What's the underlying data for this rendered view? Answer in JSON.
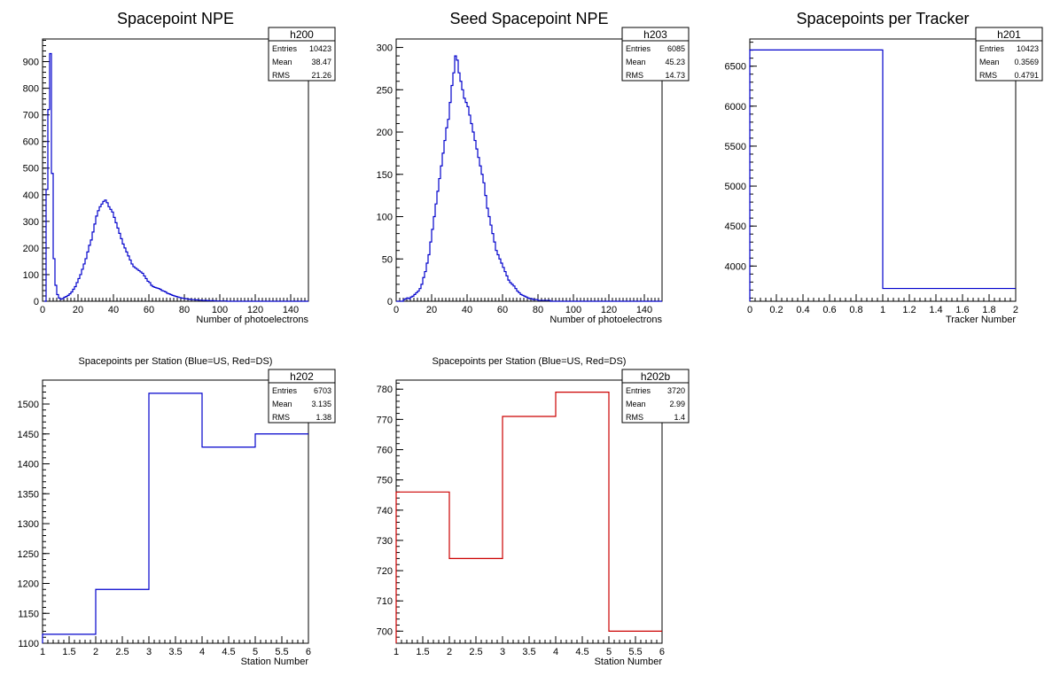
{
  "chart_data": [
    {
      "type": "histogram",
      "id": "h200",
      "title": "Spacepoint NPE",
      "title_style": "big",
      "xlabel": "Number of photoelectrons",
      "ylabel": "",
      "xlim": [
        0,
        150
      ],
      "ylim": [
        0,
        985
      ],
      "x_ticks": [
        0,
        20,
        40,
        60,
        80,
        100,
        120,
        140
      ],
      "x_minor": 2,
      "y_ticks": [
        0,
        100,
        200,
        300,
        400,
        500,
        600,
        700,
        800,
        900
      ],
      "y_minor": 20,
      "line_color": "#0000cc",
      "bin_width": 1,
      "bin_start": 1,
      "values": [
        0,
        420,
        720,
        930,
        480,
        160,
        60,
        25,
        12,
        8,
        10,
        15,
        18,
        22,
        28,
        35,
        45,
        55,
        70,
        85,
        100,
        120,
        140,
        160,
        185,
        210,
        230,
        260,
        290,
        320,
        340,
        355,
        365,
        375,
        380,
        370,
        355,
        345,
        335,
        315,
        295,
        275,
        255,
        235,
        215,
        200,
        185,
        170,
        155,
        140,
        130,
        125,
        120,
        115,
        110,
        105,
        95,
        85,
        75,
        70,
        60,
        55,
        52,
        50,
        48,
        45,
        40,
        38,
        35,
        30,
        28,
        25,
        22,
        20,
        18,
        16,
        14,
        12,
        11,
        10,
        9,
        8,
        7,
        6,
        6,
        5,
        5,
        4,
        4,
        3,
        3,
        3,
        2,
        2,
        2,
        2,
        1,
        1,
        1,
        1,
        1,
        1,
        1,
        0,
        0,
        0,
        0,
        0,
        0,
        0,
        0,
        0,
        0,
        0,
        0,
        0,
        0,
        0,
        0,
        0,
        0,
        0,
        0,
        0,
        0,
        0,
        0,
        0,
        0,
        0,
        0,
        0,
        0,
        0,
        0,
        0,
        0,
        0,
        0,
        0,
        0,
        0,
        0,
        0,
        0,
        0,
        0,
        0,
        0
      ],
      "stats": {
        "name": "h200",
        "rows": [
          {
            "label": "Entries",
            "value": "10423"
          },
          {
            "label": "Mean",
            "value": "38.47"
          },
          {
            "label": "RMS",
            "value": "21.26"
          }
        ]
      }
    },
    {
      "type": "histogram",
      "id": "h203",
      "title": "Seed Spacepoint NPE",
      "title_style": "big",
      "xlabel": "Number of photoelectrons",
      "ylabel": "",
      "xlim": [
        0,
        150
      ],
      "ylim": [
        0,
        310
      ],
      "x_ticks": [
        0,
        20,
        40,
        60,
        80,
        100,
        120,
        140
      ],
      "x_minor": 2,
      "y_ticks": [
        0,
        50,
        100,
        150,
        200,
        250,
        300
      ],
      "y_minor": 10,
      "line_color": "#0000cc",
      "bin_width": 1,
      "bin_start": 0,
      "values": [
        0,
        0,
        0,
        0,
        2,
        3,
        4,
        3,
        5,
        6,
        8,
        10,
        12,
        15,
        20,
        28,
        35,
        45,
        55,
        70,
        85,
        100,
        115,
        130,
        145,
        160,
        175,
        190,
        205,
        215,
        235,
        255,
        270,
        290,
        285,
        270,
        260,
        250,
        240,
        235,
        230,
        220,
        210,
        200,
        190,
        180,
        170,
        160,
        150,
        140,
        125,
        110,
        100,
        90,
        80,
        70,
        60,
        55,
        50,
        45,
        40,
        35,
        30,
        25,
        22,
        20,
        18,
        15,
        12,
        10,
        8,
        7,
        6,
        5,
        4,
        3,
        3,
        2,
        2,
        2,
        1,
        1,
        1,
        1,
        1,
        1,
        1,
        0,
        0,
        0,
        0,
        0,
        0,
        0,
        0,
        0,
        0,
        0,
        0,
        0,
        0,
        0,
        0,
        0,
        0,
        0,
        0,
        0,
        0,
        0,
        0,
        0,
        0,
        0,
        0,
        0,
        0,
        0,
        0,
        0,
        0,
        0,
        0,
        0,
        0,
        0,
        0,
        0,
        0,
        0,
        0,
        0,
        0,
        0,
        0,
        0,
        0,
        0,
        0,
        0,
        0,
        0,
        0,
        0,
        0,
        0,
        0,
        0,
        0,
        0
      ],
      "stats": {
        "name": "h203",
        "rows": [
          {
            "label": "Entries",
            "value": "6085"
          },
          {
            "label": "Mean",
            "value": "45.23"
          },
          {
            "label": "RMS",
            "value": "14.73"
          }
        ]
      }
    },
    {
      "type": "histogram",
      "id": "h201",
      "title": "Spacepoints per Tracker",
      "title_style": "big",
      "xlabel": "Tracker Number",
      "ylabel": "",
      "xlim": [
        0,
        2
      ],
      "ylim": [
        3560,
        6840
      ],
      "x_ticks": [
        0,
        0.2,
        0.4,
        0.6,
        0.8,
        1,
        1.2,
        1.4,
        1.6,
        1.8,
        2
      ],
      "x_minor": 0.04,
      "y_ticks": [
        4000,
        4500,
        5000,
        5500,
        6000,
        6500
      ],
      "y_minor": 100,
      "line_color": "#0000cc",
      "bin_width": 1,
      "bin_start": 0,
      "values": [
        6703,
        3720
      ],
      "stats": {
        "name": "h201",
        "rows": [
          {
            "label": "Entries",
            "value": "10423"
          },
          {
            "label": "Mean",
            "value": "0.3569"
          },
          {
            "label": "RMS",
            "value": "0.4791"
          }
        ]
      }
    },
    {
      "type": "histogram",
      "id": "h202",
      "title": "Spacepoints per Station (Blue=US, Red=DS)",
      "title_style": "small",
      "xlabel": "Station Number",
      "ylabel": "",
      "xlim": [
        1,
        6
      ],
      "ylim": [
        1100,
        1540
      ],
      "x_ticks": [
        1,
        1.5,
        2,
        2.5,
        3,
        3.5,
        4,
        4.5,
        5,
        5.5,
        6
      ],
      "x_minor": 0.1,
      "y_ticks": [
        1100,
        1150,
        1200,
        1250,
        1300,
        1350,
        1400,
        1450,
        1500
      ],
      "y_minor": 10,
      "line_color": "#0000cc",
      "bin_width": 1,
      "bin_start": 1,
      "values": [
        1115,
        1190,
        1518,
        1428,
        1450
      ],
      "stats": {
        "name": "h202",
        "rows": [
          {
            "label": "Entries",
            "value": "6703"
          },
          {
            "label": "Mean",
            "value": "3.135"
          },
          {
            "label": "RMS",
            "value": "1.38"
          }
        ]
      }
    },
    {
      "type": "histogram",
      "id": "h202b",
      "title": "Spacepoints per Station (Blue=US, Red=DS)",
      "title_style": "small",
      "xlabel": "Station Number",
      "ylabel": "",
      "xlim": [
        1,
        6
      ],
      "ylim": [
        696,
        783
      ],
      "x_ticks": [
        1,
        1.5,
        2,
        2.5,
        3,
        3.5,
        4,
        4.5,
        5,
        5.5,
        6
      ],
      "x_minor": 0.1,
      "y_ticks": [
        700,
        710,
        720,
        730,
        740,
        750,
        760,
        770,
        780
      ],
      "y_minor": 2,
      "line_color": "#cc0000",
      "bin_width": 1,
      "bin_start": 1,
      "values": [
        746,
        724,
        771,
        779,
        700
      ],
      "stats": {
        "name": "h202b",
        "rows": [
          {
            "label": "Entries",
            "value": "3720"
          },
          {
            "label": "Mean",
            "value": "2.99"
          },
          {
            "label": "RMS",
            "value": "1.4"
          }
        ]
      }
    }
  ]
}
